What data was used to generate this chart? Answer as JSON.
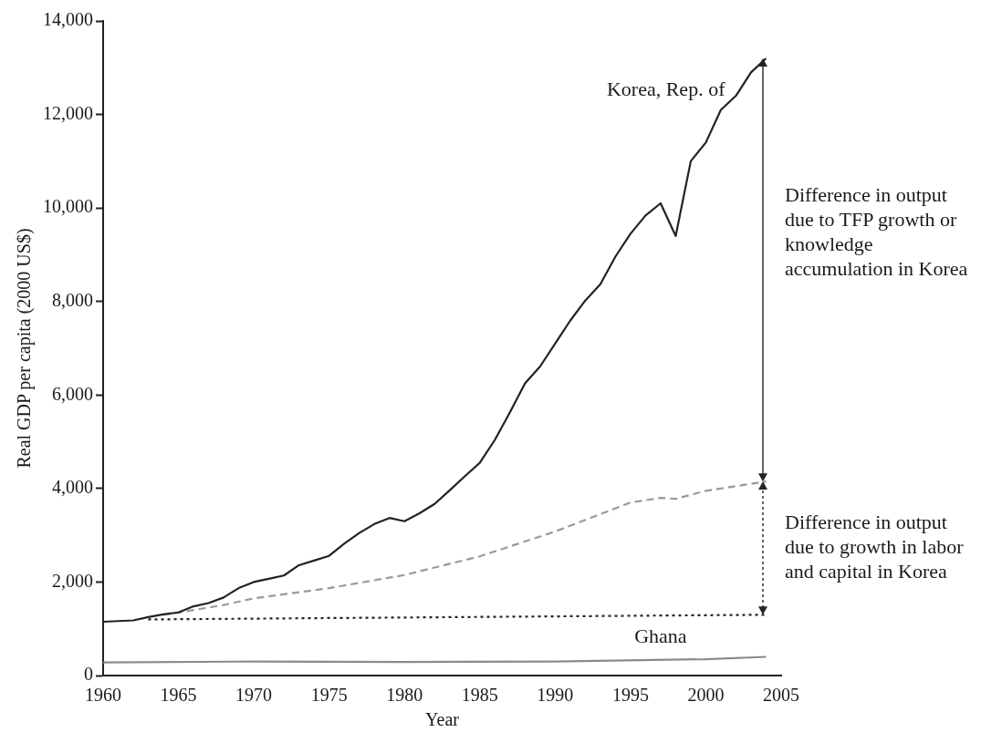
{
  "chart_data": {
    "type": "line",
    "xlabel": "Year",
    "ylabel": "Real GDP per capita (2000 US$)",
    "xlim": [
      1960,
      2005
    ],
    "xticks": [
      1960,
      1965,
      1970,
      1975,
      1980,
      1985,
      1990,
      1995,
      2000,
      2005
    ],
    "ylim": [
      0,
      14000
    ],
    "yticks": [
      0,
      {
        "value": 2000,
        "label": "2,000"
      },
      {
        "value": 4000,
        "label": "4,000"
      },
      {
        "value": 6000,
        "label": "6,000"
      },
      {
        "value": 8000,
        "label": "8,000"
      },
      {
        "value": 10000,
        "label": "10,000"
      },
      {
        "value": 12000,
        "label": "12,000"
      },
      {
        "value": 14000,
        "label": "14,000"
      }
    ],
    "grid": false,
    "legend": false,
    "marker": "none",
    "series": [
      {
        "name": "Korea, Rep. of",
        "color": "#222222",
        "line_style": "solid",
        "x": [
          1960,
          1962,
          1963,
          1964,
          1965,
          1966,
          1967,
          1968,
          1969,
          1970,
          1971,
          1972,
          1973,
          1974,
          1975,
          1976,
          1977,
          1978,
          1979,
          1980,
          1981,
          1982,
          1983,
          1984,
          1985,
          1986,
          1987,
          1988,
          1989,
          1990,
          1991,
          1992,
          1993,
          1994,
          1995,
          1996,
          1997,
          1998,
          1999,
          2000,
          2001,
          2002,
          2003,
          2004
        ],
        "values": [
          1150,
          1180,
          1250,
          1310,
          1350,
          1480,
          1550,
          1670,
          1870,
          2000,
          2070,
          2140,
          2360,
          2460,
          2560,
          2820,
          3050,
          3240,
          3370,
          3300,
          3470,
          3670,
          3960,
          4260,
          4550,
          5040,
          5630,
          6250,
          6610,
          7100,
          7590,
          8020,
          8370,
          8960,
          9450,
          9840,
          10100,
          9400,
          11000,
          11400,
          12100,
          12400,
          12900,
          13200
        ]
      },
      {
        "color": "#9a9a9a",
        "line_style": "dashed",
        "x": [
          1964,
          1966,
          1968,
          1970,
          1975,
          1980,
          1985,
          1990,
          1995,
          1997,
          1998,
          2000,
          2004
        ],
        "values": [
          1300,
          1400,
          1510,
          1650,
          1870,
          2150,
          2550,
          3080,
          3700,
          3800,
          3780,
          3950,
          4150
        ]
      },
      {
        "color": "#222222",
        "line_style": "dotted",
        "x": [
          1963,
          2004
        ],
        "values": [
          1200,
          1300
        ]
      },
      {
        "name": "Ghana",
        "color": "#8a8a8a",
        "line_style": "solid",
        "x": [
          1960,
          1970,
          1980,
          1990,
          2000,
          2004
        ],
        "values": [
          280,
          300,
          290,
          300,
          350,
          400
        ]
      }
    ],
    "annotations": [
      "Difference in output due to TFP growth or knowledge accumulation in Korea",
      "Difference in output due to growth in labor and capital in Korea"
    ]
  }
}
